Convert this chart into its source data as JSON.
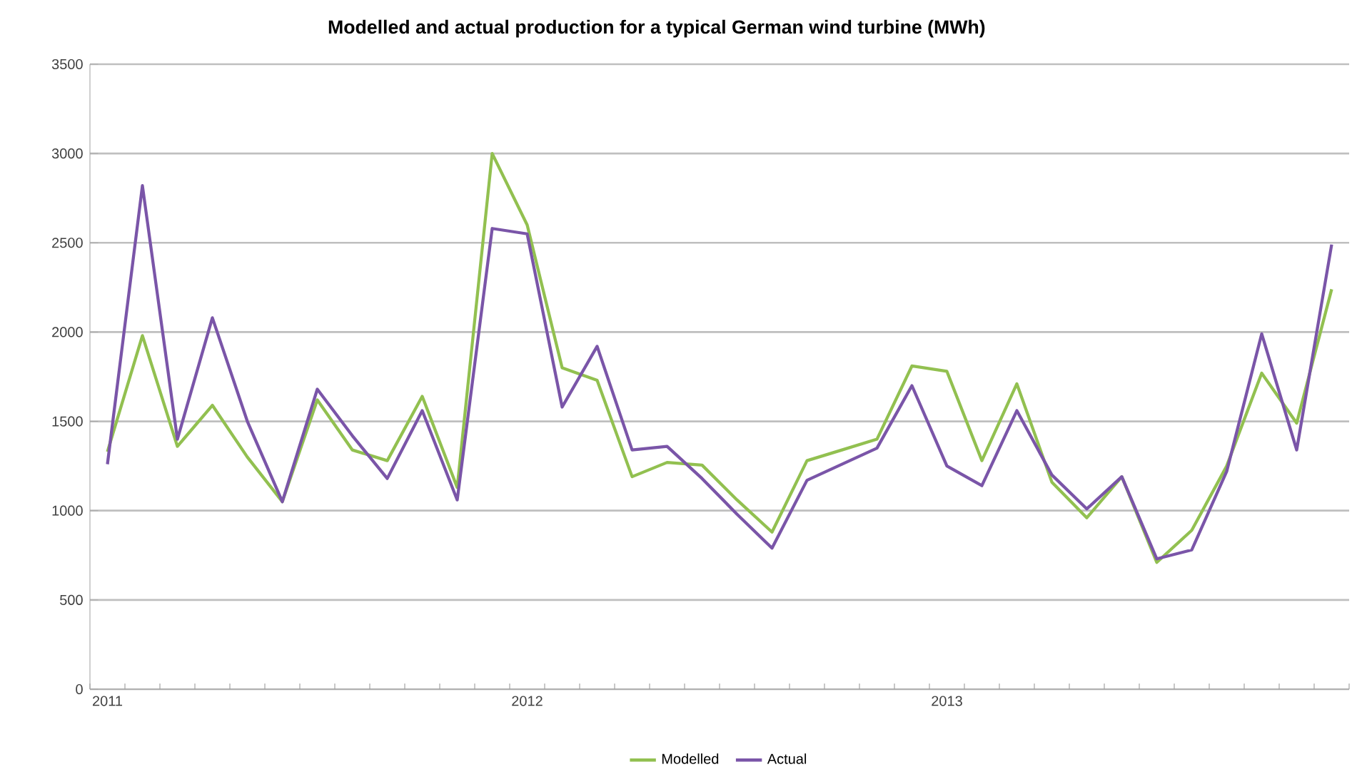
{
  "chart_data": {
    "type": "line",
    "title": "Modelled and actual production for a typical German wind turbine (MWh)",
    "categories": [
      "2011",
      null,
      null,
      null,
      null,
      null,
      null,
      null,
      null,
      null,
      null,
      null,
      "2012",
      null,
      null,
      null,
      null,
      null,
      null,
      null,
      null,
      null,
      null,
      null,
      "2013",
      null,
      null,
      null,
      null,
      null,
      null,
      null,
      null,
      null,
      null,
      null
    ],
    "series": [
      {
        "name": "Modelled",
        "color": "#92c050",
        "values": [
          1330,
          1980,
          1360,
          1590,
          1300,
          1050,
          1620,
          1340,
          1280,
          1640,
          1130,
          3000,
          2600,
          1800,
          1730,
          1190,
          1270,
          1255,
          1060,
          880,
          1280,
          1340,
          1400,
          1810,
          1780,
          1280,
          1710,
          1160,
          960,
          1190,
          710,
          890,
          1250,
          1770,
          1490,
          2240
        ]
      },
      {
        "name": "Actual",
        "color": "#7a55a8",
        "values": [
          1260,
          2820,
          1400,
          2080,
          1500,
          1050,
          1680,
          1420,
          1180,
          1560,
          1060,
          2580,
          2550,
          1580,
          1920,
          1340,
          1360,
          1180,
          980,
          790,
          1170,
          1260,
          1350,
          1700,
          1250,
          1140,
          1560,
          1200,
          1010,
          1190,
          730,
          780,
          1220,
          1990,
          1340,
          2490
        ]
      }
    ],
    "ylim": [
      0,
      3500
    ],
    "yticks": [
      0,
      500,
      1000,
      1500,
      2000,
      2500,
      3000,
      3500
    ],
    "grid": "y",
    "legend": "bottom",
    "marker": "none",
    "line_style": "solid"
  }
}
